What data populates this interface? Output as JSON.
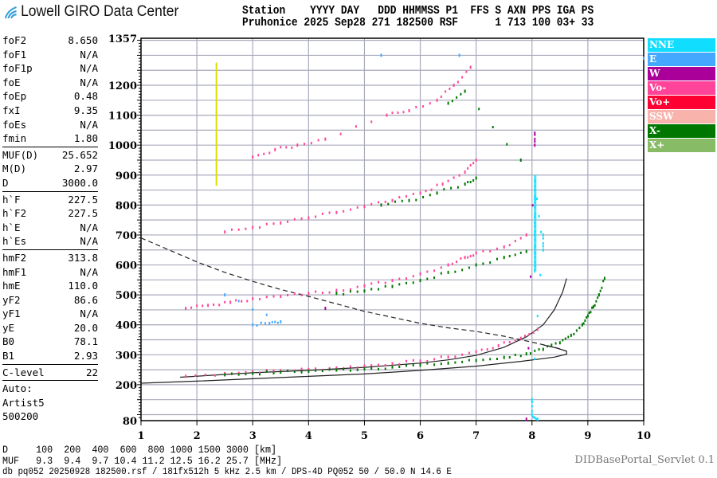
{
  "header": {
    "logo_text": "Lowell GIRO Data Center",
    "columns_line": "Station    YYYY DAY   DDD HHMMSS P1  FFS S AXN PPS IGA PS",
    "values_line": "Pruhonice 2025 Sep28 271 182500 RSF      1 713 100 03+ 33"
  },
  "params": {
    "group1": [
      {
        "k": "foF2",
        "v": "8.650"
      },
      {
        "k": "foF1",
        "v": "N/A"
      },
      {
        "k": "foF1p",
        "v": "N/A"
      },
      {
        "k": "foE",
        "v": "N/A"
      },
      {
        "k": "foEp",
        "v": "0.48"
      },
      {
        "k": "fxI",
        "v": "9.35"
      },
      {
        "k": "foEs",
        "v": "N/A"
      },
      {
        "k": "fmin",
        "v": "1.80"
      }
    ],
    "group2": [
      {
        "k": "MUF(D)",
        "v": "25.652"
      },
      {
        "k": "M(D)",
        "v": "2.97"
      },
      {
        "k": "D",
        "v": "3000.0"
      }
    ],
    "group3": [
      {
        "k": "h`F",
        "v": "227.5"
      },
      {
        "k": "h`F2",
        "v": "227.5"
      },
      {
        "k": "h`E",
        "v": "N/A"
      },
      {
        "k": "h`Es",
        "v": "N/A"
      }
    ],
    "group4": [
      {
        "k": "hmF2",
        "v": "313.8"
      },
      {
        "k": "hmF1",
        "v": "N/A"
      },
      {
        "k": "hmE",
        "v": "110.0"
      },
      {
        "k": "yF2",
        "v": "86.6"
      },
      {
        "k": "yF1",
        "v": "N/A"
      },
      {
        "k": "yE",
        "v": "20.0"
      },
      {
        "k": "B0",
        "v": "78.1"
      },
      {
        "k": "B1",
        "v": "2.93"
      }
    ],
    "group5": [
      {
        "k": "C-level",
        "v": "22"
      }
    ],
    "auto": [
      "Auto:",
      "Artist5",
      "500200"
    ]
  },
  "legend": [
    {
      "label": "NNE",
      "color": "#11ddff"
    },
    {
      "label": "E",
      "color": "#44a8ff"
    },
    {
      "label": "W",
      "color": "#aa0099"
    },
    {
      "label": "Vo-",
      "color": "#ff4499"
    },
    {
      "label": "Vo+",
      "color": "#ff0033"
    },
    {
      "label": "SSW",
      "color": "#f8b4ac"
    },
    {
      "label": "X-",
      "color": "#007700"
    },
    {
      "label": "X+",
      "color": "#88bb66"
    }
  ],
  "footer": {
    "d_line": "D     100  200  400  600  800 1000 1500 3000 [km]",
    "muf_line": "MUF   9.3  9.4  9.7 10.4 11.2 12.5 16.2 25.7 [MHz]",
    "info_line": "db pq052 20250928 182500.rsf / 181fx512h 5 kHz 2.5 km / DPS-4D PQ052 50 / 50.0 N 14.6 E",
    "servlet": "DIDBasePortal_Servlet 0.1"
  },
  "chart_data": {
    "type": "scatter",
    "xlim": [
      1,
      10
    ],
    "ylim": [
      80,
      1357
    ],
    "x_ticks": [
      "1",
      "2",
      "3",
      "4",
      "5",
      "6",
      "7",
      "8",
      "9",
      "10"
    ],
    "y_ticks": [
      "80",
      "200",
      "300",
      "400",
      "500",
      "600",
      "700",
      "800",
      "900",
      "1000",
      "1100",
      "1200",
      "1357"
    ],
    "grid": true,
    "legend_position": "right",
    "series": [
      {
        "name": "Vo-",
        "color": "#ff4499",
        "points": [
          [
            1.8,
            228
          ],
          [
            2.5,
            237
          ],
          [
            3,
            243
          ],
          [
            3.5,
            247
          ],
          [
            4,
            251
          ],
          [
            4.5,
            256
          ],
          [
            5,
            262
          ],
          [
            5.5,
            270
          ],
          [
            6,
            279
          ],
          [
            6.5,
            292
          ],
          [
            7,
            310
          ],
          [
            7.4,
            330
          ],
          [
            7.8,
            355
          ],
          [
            8.1,
            385
          ]
        ]
      },
      {
        "name": "X-",
        "color": "#007700",
        "points": [
          [
            2.5,
            233
          ],
          [
            3,
            238
          ],
          [
            3.5,
            242
          ],
          [
            4,
            245
          ],
          [
            4.5,
            249
          ],
          [
            5,
            253
          ],
          [
            5.5,
            259
          ],
          [
            6,
            265
          ],
          [
            6.5,
            272
          ],
          [
            7,
            281
          ],
          [
            7.5,
            291
          ],
          [
            7.9,
            303
          ],
          [
            8.2,
            318
          ],
          [
            8.5,
            340
          ],
          [
            8.7,
            365
          ],
          [
            8.9,
            400
          ],
          [
            9.0,
            430
          ],
          [
            9.1,
            460
          ],
          [
            9.2,
            500
          ],
          [
            9.3,
            555
          ]
        ]
      },
      {
        "name": "Vo-",
        "color": "#ff4499",
        "points": [
          [
            1.8,
            455
          ],
          [
            2.2,
            465
          ],
          [
            2.6,
            475
          ],
          [
            3,
            487
          ],
          [
            3.5,
            495
          ],
          [
            4,
            505
          ],
          [
            4.5,
            515
          ],
          [
            5,
            530
          ],
          [
            5.5,
            548
          ],
          [
            6,
            570
          ],
          [
            6.5,
            600
          ],
          [
            6.8,
            625
          ],
          [
            7,
            640
          ],
          [
            7.5,
            660
          ],
          [
            7.9,
            700
          ]
        ]
      },
      {
        "name": "X-",
        "color": "#007700",
        "points": [
          [
            4.5,
            505
          ],
          [
            5,
            513
          ],
          [
            5.5,
            528
          ],
          [
            6,
            548
          ],
          [
            6.5,
            575
          ],
          [
            7,
            600
          ],
          [
            7.5,
            625
          ],
          [
            7.9,
            645
          ]
        ]
      },
      {
        "name": "Vo-",
        "color": "#ff4499",
        "points": [
          [
            2.5,
            710
          ],
          [
            3,
            725
          ],
          [
            3.5,
            740
          ],
          [
            4,
            757
          ],
          [
            4.5,
            775
          ],
          [
            5,
            795
          ],
          [
            5.5,
            815
          ],
          [
            6,
            840
          ],
          [
            6.4,
            870
          ],
          [
            6.8,
            910
          ],
          [
            7,
            950
          ]
        ]
      },
      {
        "name": "X-",
        "color": "#007700",
        "points": [
          [
            5.3,
            800
          ],
          [
            5.8,
            815
          ],
          [
            6.3,
            840
          ],
          [
            6.8,
            870
          ],
          [
            7,
            890
          ]
        ]
      },
      {
        "name": "Vo-",
        "color": "#ff4499",
        "points": [
          [
            3,
            960
          ],
          [
            3.4,
            985
          ],
          [
            3.8,
            1000
          ],
          [
            4.3,
            1020
          ],
          [
            5.4,
            1100
          ],
          [
            5.8,
            1115
          ],
          [
            6.3,
            1150
          ],
          [
            6.6,
            1200
          ],
          [
            6.9,
            1260
          ]
        ]
      },
      {
        "name": "X-",
        "color": "#007700",
        "points": [
          [
            6.5,
            1140
          ],
          [
            6.8,
            1180
          ],
          [
            7.8,
            950
          ]
        ]
      },
      {
        "name": "NNE",
        "color": "#11ddff",
        "points": [
          [
            8.05,
            580
          ],
          [
            8.05,
            640
          ],
          [
            8.05,
            700
          ],
          [
            8.05,
            760
          ],
          [
            8.05,
            820
          ],
          [
            8.05,
            880
          ],
          [
            8.2,
            650
          ],
          [
            8.2,
            700
          ],
          [
            8.0,
            150
          ],
          [
            8.0,
            100
          ],
          [
            8.1,
            85
          ]
        ]
      },
      {
        "name": "W",
        "color": "#aa0099",
        "points": [
          [
            8.05,
            1000
          ],
          [
            8.05,
            1040
          ],
          [
            7.9,
            85
          ],
          [
            4.3,
            455
          ]
        ]
      },
      {
        "name": "E",
        "color": "#44a8ff",
        "points": [
          [
            3,
            400
          ],
          [
            3.3,
            405
          ],
          [
            3.5,
            410
          ],
          [
            2.5,
            500
          ],
          [
            5.3,
            1300
          ],
          [
            6.7,
            1300
          ],
          [
            10,
            1290
          ]
        ]
      },
      {
        "name": "yellow",
        "color": "#dddd00",
        "points": [
          [
            2.35,
            870
          ],
          [
            2.35,
            950
          ],
          [
            2.35,
            1030
          ],
          [
            2.35,
            1110
          ],
          [
            2.35,
            1190
          ],
          [
            2.35,
            1270
          ]
        ]
      }
    ],
    "profile_curves": {
      "upper_solid": [
        [
          1.7,
          225
        ],
        [
          3,
          240
        ],
        [
          4,
          248
        ],
        [
          5,
          258
        ],
        [
          6,
          272
        ],
        [
          6.5,
          283
        ],
        [
          7,
          298
        ],
        [
          7.5,
          325
        ],
        [
          7.9,
          360
        ],
        [
          8.2,
          400
        ],
        [
          8.4,
          450
        ],
        [
          8.55,
          510
        ],
        [
          8.62,
          555
        ]
      ],
      "lower_solid": [
        [
          1,
          205
        ],
        [
          2,
          212
        ],
        [
          3,
          220
        ],
        [
          4,
          228
        ],
        [
          5,
          236
        ],
        [
          6,
          248
        ],
        [
          7,
          262
        ],
        [
          7.8,
          278
        ],
        [
          8.4,
          292
        ],
        [
          8.62,
          302
        ],
        [
          8.62,
          312
        ],
        [
          8.45,
          322
        ],
        [
          8.2,
          333
        ]
      ],
      "dashed": [
        [
          1,
          690
        ],
        [
          1.5,
          650
        ],
        [
          2,
          610
        ],
        [
          2.5,
          575
        ],
        [
          3,
          545
        ],
        [
          3.5,
          518
        ],
        [
          4,
          495
        ],
        [
          4.5,
          470
        ],
        [
          5,
          445
        ],
        [
          5.5,
          425
        ],
        [
          6,
          405
        ],
        [
          6.5,
          390
        ],
        [
          7,
          378
        ],
        [
          7.5,
          362
        ],
        [
          8,
          342
        ],
        [
          8.4,
          325
        ],
        [
          8.62,
          312
        ]
      ]
    }
  }
}
